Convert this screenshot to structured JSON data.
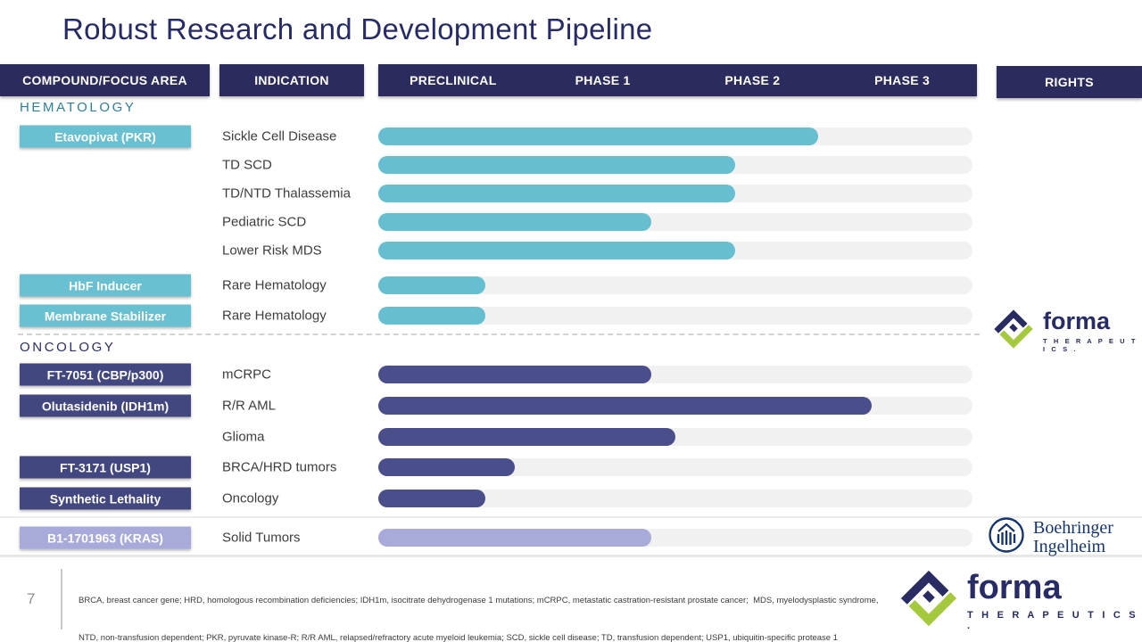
{
  "slide": {
    "title": "Robust Research and Development Pipeline",
    "page_number": "7"
  },
  "table_header": {
    "compound": "COMPOUND/FOCUS AREA",
    "indication": "INDICATION",
    "phases": [
      "PRECLINICAL",
      "PHASE 1",
      "PHASE 2",
      "PHASE 3"
    ],
    "rights": "RIGHTS"
  },
  "sections": [
    {
      "name": "HEMATOLOGY",
      "rows": [
        {
          "compound": "Etavopivat (PKR)",
          "indication": "Sickle Cell Disease",
          "progress": 74
        },
        {
          "compound": "",
          "indication": "TD SCD",
          "progress": 60
        },
        {
          "compound": "",
          "indication": "TD/NTD Thalassemia",
          "progress": 60
        },
        {
          "compound": "",
          "indication": "Pediatric SCD",
          "progress": 46
        },
        {
          "compound": "",
          "indication": "Lower Risk MDS",
          "progress": 60
        },
        {
          "compound": "HbF Inducer",
          "indication": "Rare Hematology",
          "progress": 18
        },
        {
          "compound": "Membrane Stabilizer",
          "indication": "Rare Hematology",
          "progress": 18
        }
      ]
    },
    {
      "name": "ONCOLOGY",
      "rows": [
        {
          "compound": "FT-7051 (CBP/p300)",
          "indication": "mCRPC",
          "progress": 46
        },
        {
          "compound": "Olutasidenib (IDH1m)",
          "indication": "R/R AML",
          "progress": 83
        },
        {
          "compound": "",
          "indication": "Glioma",
          "progress": 50
        },
        {
          "compound": "FT-3171 (USP1)",
          "indication": "BRCA/HRD tumors",
          "progress": 23
        },
        {
          "compound": "Synthetic Lethality",
          "indication": "Oncology",
          "progress": 18
        },
        {
          "compound": "B1-1701963 (KRAS)",
          "indication": "Solid Tumors",
          "progress": 46
        }
      ]
    }
  ],
  "partners": {
    "forma": {
      "word": "forma",
      "sub": "T H E R A P E U T I C S ."
    },
    "boehringer": {
      "line1": "Boehringer",
      "line2": "Ingelheim"
    }
  },
  "footer": {
    "line1": "BRCA, breast cancer gene; HRD, homologous recombination deficiencies; IDH1m, isocitrate dehydrogenase 1 mutations; mCRPC, metastatic castration-resistant prostate cancer;  MDS, myelodysplastic syndrome,",
    "line2": "NTD, non-transfusion dependent; PKR, pyruvate kinase-R; R/R AML, relapsed/refractory acute myeloid leukemia; SCD, sickle cell disease; TD, transfusion dependent; USP1, ubiquitin-specific protease 1"
  },
  "colors": {
    "header_navy": "#2c2b5e",
    "badge_navy": "#434780",
    "bar_navy": "#4a4e8a",
    "teal": "#66bfd0",
    "lavender": "#a8aad9",
    "track_gray": "#f1f1f1",
    "title_navy": "#272b66",
    "hematology_label": "#2e7f96",
    "forma_green": "#a5c93d"
  },
  "chart_data": {
    "type": "bar",
    "orientation": "horizontal",
    "title": "Robust Research and Development Pipeline",
    "x_axis_phases": [
      "PRECLINICAL",
      "PHASE 1",
      "PHASE 2",
      "PHASE 3"
    ],
    "value_unit": "percent of Preclinical-to-Phase-3 track filled",
    "categories": [
      "Sickle Cell Disease",
      "TD SCD",
      "TD/NTD Thalassemia",
      "Pediatric SCD",
      "Lower Risk MDS",
      "Rare Hematology",
      "Rare Hematology",
      "mCRPC",
      "R/R AML",
      "Glioma",
      "BRCA/HRD tumors",
      "Oncology",
      "Solid Tumors"
    ],
    "values": [
      74,
      60,
      60,
      46,
      60,
      18,
      18,
      46,
      83,
      50,
      23,
      18,
      46
    ],
    "groups": [
      "HEMATOLOGY",
      "HEMATOLOGY",
      "HEMATOLOGY",
      "HEMATOLOGY",
      "HEMATOLOGY",
      "HEMATOLOGY",
      "HEMATOLOGY",
      "ONCOLOGY",
      "ONCOLOGY",
      "ONCOLOGY",
      "ONCOLOGY",
      "ONCOLOGY",
      "ONCOLOGY"
    ],
    "legend": "none",
    "grid": false
  }
}
